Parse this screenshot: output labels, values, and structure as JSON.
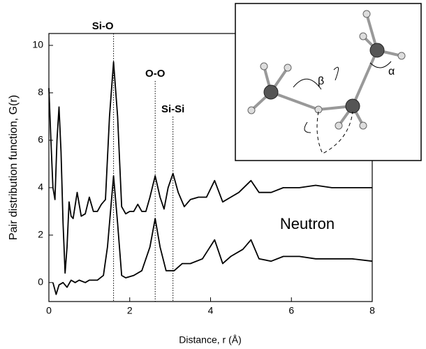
{
  "chart_data": {
    "type": "line",
    "xlabel": "Distance, r (Å)",
    "ylabel": "Pair distribution function, G(r)",
    "xlim": [
      0,
      8
    ],
    "ylim": [
      -0.8,
      10.5
    ],
    "xticks": [
      0,
      2,
      4,
      6,
      8
    ],
    "yticks": [
      0,
      2,
      4,
      6,
      8,
      10
    ],
    "series": [
      {
        "color": "#000000",
        "x": [
          0,
          0.05,
          0.1,
          0.15,
          0.2,
          0.25,
          0.3,
          0.35,
          0.4,
          0.45,
          0.5,
          0.55,
          0.6,
          0.7,
          0.8,
          0.9,
          1.0,
          1.1,
          1.2,
          1.3,
          1.4,
          1.5,
          1.6,
          1.7,
          1.8,
          1.9,
          2.0,
          2.1,
          2.2,
          2.3,
          2.4,
          2.5,
          2.63,
          2.75,
          2.85,
          2.95,
          3.07,
          3.2,
          3.35,
          3.5,
          3.7,
          3.9,
          4.1,
          4.3,
          4.5,
          4.7,
          5.0,
          5.2,
          5.5,
          5.8,
          6.2,
          6.6,
          7.0,
          7.5,
          8
        ],
        "values": [
          8.2,
          6,
          4,
          3.5,
          6,
          7.4,
          5.5,
          2.5,
          0.4,
          1.5,
          3.4,
          2.8,
          2.7,
          3.8,
          2.8,
          2.9,
          3.6,
          3.0,
          3.0,
          3.3,
          3.5,
          7,
          9.3,
          7,
          3.2,
          2.9,
          3.0,
          3.0,
          3.3,
          3.0,
          3.0,
          3.6,
          4.5,
          3.6,
          3.1,
          4.0,
          4.6,
          3.8,
          3.2,
          3.5,
          3.6,
          3.6,
          4.3,
          3.4,
          3.6,
          3.8,
          4.3,
          3.8,
          3.8,
          4.0,
          4.0,
          4.1,
          4.0,
          4.0,
          4.0
        ]
      },
      {
        "color": "#000000",
        "x": [
          0.1,
          0.18,
          0.25,
          0.35,
          0.45,
          0.55,
          0.65,
          0.75,
          0.9,
          1.0,
          1.2,
          1.35,
          1.45,
          1.6,
          1.7,
          1.8,
          1.9,
          2.1,
          2.3,
          2.5,
          2.63,
          2.75,
          2.9,
          3.1,
          3.3,
          3.5,
          3.8,
          4.1,
          4.3,
          4.5,
          4.8,
          5.0,
          5.2,
          5.5,
          5.8,
          6.2,
          6.6,
          7.0,
          7.5,
          8
        ],
        "values": [
          0,
          -0.5,
          -0.1,
          0,
          -0.2,
          0.1,
          0,
          0.1,
          0,
          0.1,
          0.1,
          0.3,
          1.5,
          4.5,
          2.5,
          0.3,
          0.2,
          0.3,
          0.5,
          1.5,
          2.7,
          1.5,
          0.5,
          0.5,
          0.8,
          0.8,
          1.0,
          1.8,
          0.8,
          1.1,
          1.4,
          1.8,
          1.0,
          0.9,
          1.1,
          1.1,
          1.0,
          1.0,
          1.0,
          0.9
        ]
      }
    ],
    "annotations": [
      {
        "text": "Si-O",
        "x": 1.6,
        "y": 10.5
      },
      {
        "text": "O-O",
        "x": 2.63,
        "y": 8.5
      },
      {
        "text": "Si-Si",
        "x": 3.07,
        "y": 7.0
      }
    ],
    "label": "Neutron",
    "inset_labels": [
      "β",
      "α"
    ]
  }
}
